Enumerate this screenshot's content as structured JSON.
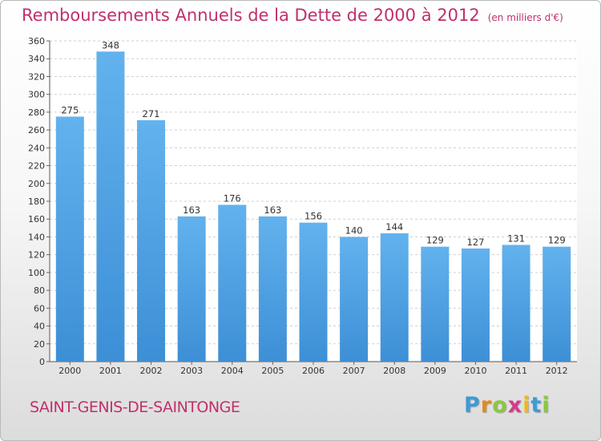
{
  "chart_data": {
    "type": "bar",
    "title": "Remboursements Annuels de la Dette de 2000 à 2012",
    "subtitle": "(en milliers d'€)",
    "categories": [
      "2000",
      "2001",
      "2002",
      "2003",
      "2004",
      "2005",
      "2006",
      "2007",
      "2008",
      "2009",
      "2010",
      "2011",
      "2012"
    ],
    "values": [
      275,
      348,
      271,
      163,
      176,
      163,
      156,
      140,
      144,
      129,
      127,
      131,
      129
    ],
    "ylim": [
      0,
      360
    ],
    "ytick_step": 20,
    "xlabel": "",
    "ylabel": "",
    "grid": true,
    "bar_color": "#3d8fd6"
  },
  "footer": {
    "commune": "SAINT-GENIS-DE-SAINTONGE",
    "logo_letters": [
      "P",
      "r",
      "o",
      "x",
      "i",
      "t",
      "i"
    ],
    "logo_colors": [
      "#3c9bd6",
      "#e08b22",
      "#8cc63f",
      "#d63a8a",
      "#f2b81a",
      "#3c9bd6",
      "#8cc63f"
    ]
  }
}
